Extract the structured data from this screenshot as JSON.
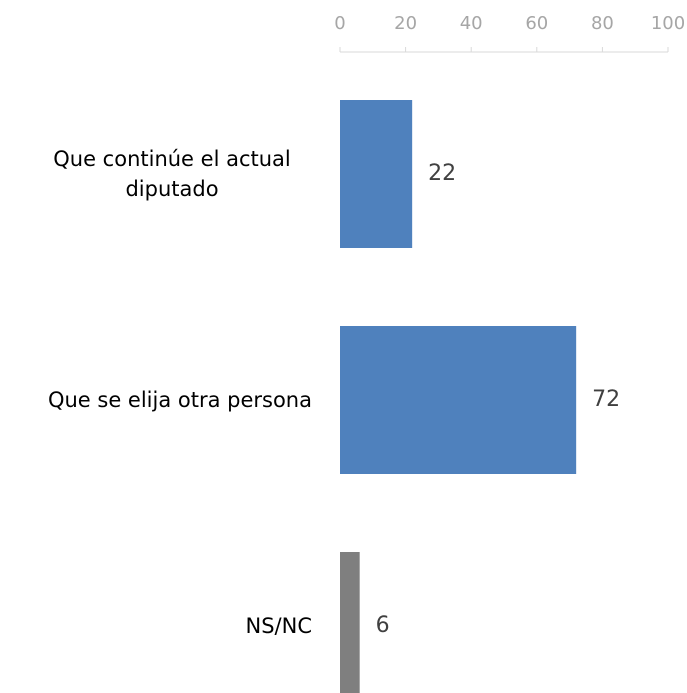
{
  "chart_data": {
    "type": "barh",
    "categories": [
      "Que continúe el actual diputado",
      "Que se elija otra persona",
      "NS/NC"
    ],
    "values": [
      22,
      72,
      6
    ],
    "colors": [
      "#4f81bd",
      "#4f81bd",
      "#7f7f7f"
    ],
    "xlim": [
      0,
      100
    ],
    "xticks": [
      0,
      20,
      40,
      60,
      80,
      100
    ]
  }
}
